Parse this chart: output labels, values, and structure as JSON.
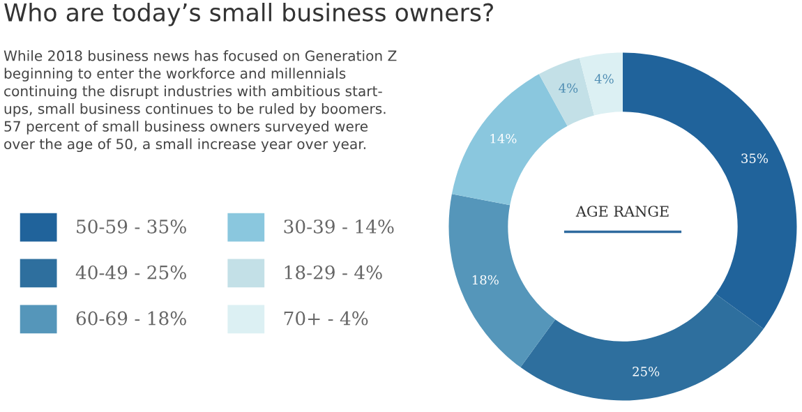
{
  "chart_data": {
    "type": "donut",
    "title": "Who are today’s small business owners?",
    "subtitle": "While 2018 business news has focused on Generation Z\nbeginning to enter the workforce and millennials\ncontinuing the disrupt industries with ambitious start-\nups, small business continues to be ruled by boomers.\n57 percent of small business owners surveyed were\nover the age of 50, a small increase year over year.",
    "annotations": [
      "AGE RANGE"
    ],
    "categories": [
      "50-59",
      "40-49",
      "60-69",
      "30-39",
      "18-29",
      "70+"
    ],
    "values": [
      35,
      25,
      18,
      14,
      4,
      4
    ],
    "value_labels": [
      "35%",
      "25%",
      "18%",
      "14%",
      "4%",
      "4%"
    ],
    "colors": [
      "#20639b",
      "#2e6f9e",
      "#5596ba",
      "#8ac7de",
      "#c3e0e7",
      "#dcf0f3"
    ],
    "legend": "left"
  }
}
